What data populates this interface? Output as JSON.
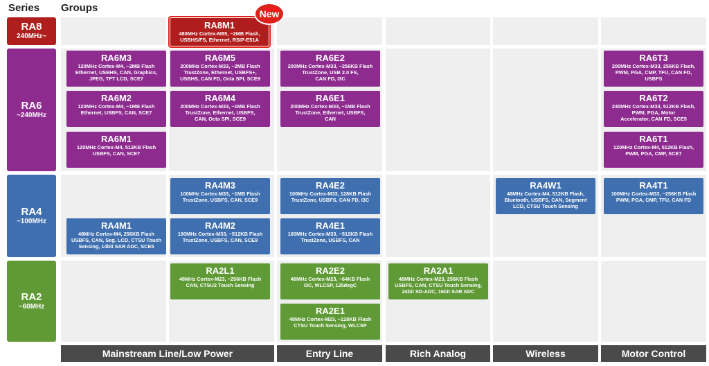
{
  "header": {
    "series": "Series",
    "groups": "Groups"
  },
  "badge": "New",
  "columns": [
    "Mainstream Line/Low Power",
    "Entry Line",
    "Rich Analog",
    "Wireless",
    "Motor Control"
  ],
  "series": [
    {
      "name": "RA8",
      "speed": "240MHz~",
      "groups": [
        {
          "name": "RA8M1",
          "lines": [
            "480MHz Cortex-M85, ~2MB Flash,",
            "USBHS/FS, Ethernet, RSIP-E51A"
          ]
        }
      ]
    },
    {
      "name": "RA6",
      "speed": "~240MHz",
      "groups": [
        {
          "name": "RA6M3",
          "lines": [
            "120MHz Cortex-M4, ~2MB Flash",
            "Ethernet, USBHS, CAN, Graphics,",
            "JPEG, TFT LCD, SCE7"
          ]
        },
        {
          "name": "RA6M2",
          "lines": [
            "120MHz Cortex-M4, ~1MB Flash",
            "Ethernet, USBFS, CAN, SCE7"
          ]
        },
        {
          "name": "RA6M1",
          "lines": [
            "120MHz Cortex-M4, 512KB Flash",
            "USBFS, CAN, SCE7"
          ]
        },
        {
          "name": "RA6M5",
          "lines": [
            "200MHz Cortex-M33, ~2MB Flash",
            "TrustZone, Ethernet, USBFS+,",
            "USBHS, CAN FD, Octa SPI, SCE9"
          ]
        },
        {
          "name": "RA6M4",
          "lines": [
            "200MHz Cortex-M33, ~1MB Flash",
            "TrustZone, Ethernet, USBFS,",
            "CAN, Octa SPI, SCE9"
          ]
        },
        {
          "name": "RA6E2",
          "lines": [
            "200MHz Cortex-M33, ~256KB Flash",
            "TrustZone, USB 2.0 FS,",
            "CAN FD, I3C"
          ]
        },
        {
          "name": "RA6E1",
          "lines": [
            "200MHz Cortex-M33, ~1MB Flash",
            "TrustZone, Ethernet, USBFS,",
            "CAN"
          ]
        },
        {
          "name": "RA6T3",
          "lines": [
            "200MHz Cortex-M33, 256KB Flash,",
            "PWM, PGA, CMP, TFU, CAN FD,",
            "USBFS"
          ]
        },
        {
          "name": "RA6T2",
          "lines": [
            "240MHz Cortex-M33, 512KB Flash,",
            "PWM, PGA, Motor",
            "Accelerator, CAN FD, SCE5"
          ]
        },
        {
          "name": "RA6T1",
          "lines": [
            "120MHz Cortex-M4, 512KB Flash,",
            "PWM, PGA, CMP, SCE7"
          ]
        }
      ]
    },
    {
      "name": "RA4",
      "speed": "~100MHz",
      "groups": [
        {
          "name": "RA4M3",
          "lines": [
            "100MHz Cortex-M33, ~1MB Flash",
            "TrustZone, USBFS, CAN, SCE9"
          ]
        },
        {
          "name": "RA4M2",
          "lines": [
            "100MHz Cortex-M33, ~512KB Flash",
            "TrustZone, USBFS, CAN, SCE9"
          ]
        },
        {
          "name": "RA4M1",
          "lines": [
            "48MHz Cortex-M4, 256KB Flash",
            "USBFS, CAN, Seg. LCD, CTSU Touch",
            "Sensing, 14bit SAR ADC, SCE5"
          ]
        },
        {
          "name": "RA4E2",
          "lines": [
            "100MHz Cortex-M33, 128KB Flash",
            "TrustZone, USBFS, CAN FD, I3C"
          ]
        },
        {
          "name": "RA4E1",
          "lines": [
            "100MHz Cortex-M33, ~512KB Flash",
            "TrustZone, USBFS, CAN"
          ]
        },
        {
          "name": "RA4W1",
          "lines": [
            "48MHz Cortex-M4, 512KB Flash,",
            "Bluetooth, USBFS, CAN, Segment",
            "LCD, CTSU Touch Sensing"
          ]
        },
        {
          "name": "RA4T1",
          "lines": [
            "100MHz Cortex-M33, ~256KB Flash",
            "PWM, PGA, CMP, TFU, CAN FD"
          ]
        }
      ]
    },
    {
      "name": "RA2",
      "speed": "~60MHz",
      "groups": [
        {
          "name": "RA2L1",
          "lines": [
            "48MHz Cortex-M23, ~256KB Flash",
            "CAN, CTSU2 Touch Sensing"
          ]
        },
        {
          "name": "RA2E2",
          "lines": [
            "48MHz Cortex-M23, ~64KB Flash",
            "I3C, WLCSP, 125degC"
          ]
        },
        {
          "name": "RA2E1",
          "lines": [
            "48MHz Cortex-M23, ~128KB Flash",
            "CTSU Touch Sensing, WLCSP"
          ]
        },
        {
          "name": "RA2A1",
          "lines": [
            "48MHz Cortex-M23, 256KB Flash",
            "USBFS, CAN, CTSU Touch Sensing,",
            "24bit SD-ADC, 16bit SAR ADC"
          ]
        }
      ]
    }
  ]
}
